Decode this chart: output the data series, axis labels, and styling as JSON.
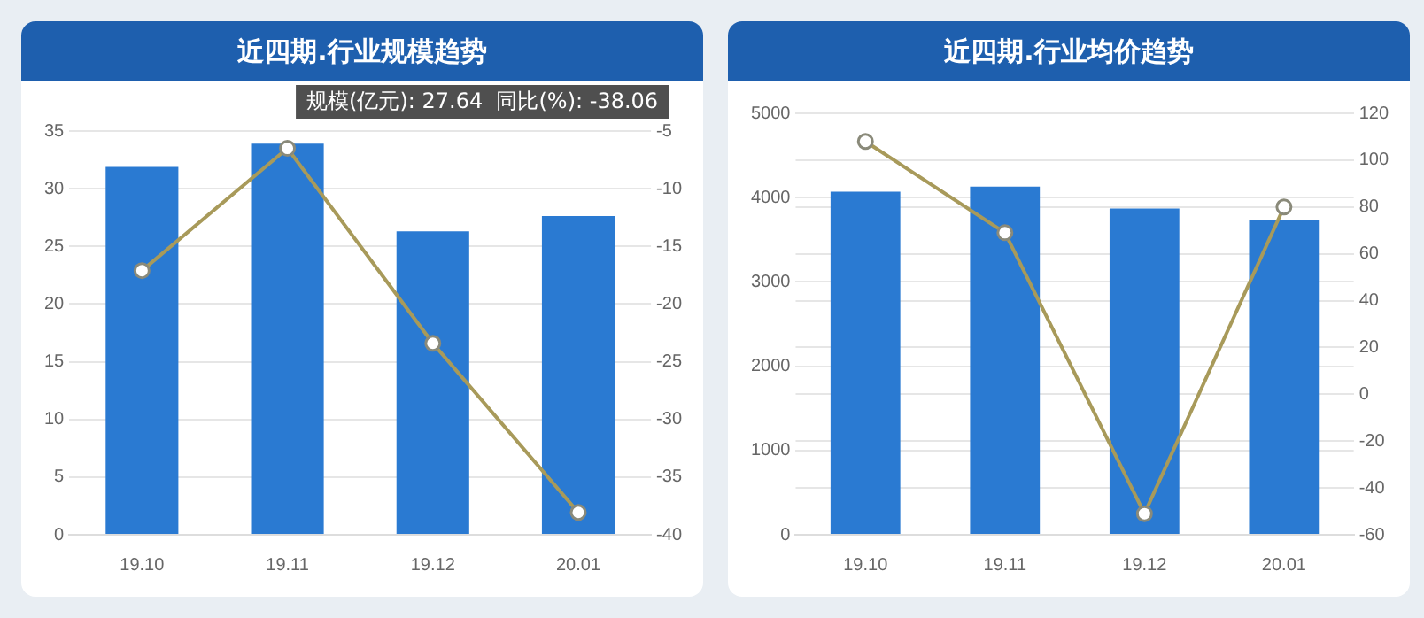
{
  "chart_data": [
    {
      "type": "bar",
      "title": "近四期.行业规模趋势",
      "categories": [
        "19.10",
        "19.11",
        "19.12",
        "20.01"
      ],
      "series": [
        {
          "color": "#2a7ad2",
          "values": [
            31.9,
            33.9,
            26.3,
            27.64
          ]
        },
        {
          "type": "line",
          "axis": "y2",
          "color": "#a89a5a",
          "values": [
            -17.1,
            -6.5,
            -23.4,
            -38.06
          ]
        }
      ],
      "ylim": [
        0,
        35
      ],
      "yticks": [
        0,
        5,
        10,
        15,
        20,
        25,
        30,
        35
      ],
      "y2lim": [
        -40,
        -5
      ],
      "y2ticks": [
        -40,
        -35,
        -30,
        -25,
        -20,
        -15,
        -10,
        -5
      ],
      "grid": true,
      "legend": false,
      "marker": "circle",
      "line_style": "solid",
      "annotations": [
        "规模(亿元): 27.64  同比(%): -38.06"
      ]
    },
    {
      "type": "bar",
      "title": "近四期.行业均价趋势",
      "categories": [
        "19.10",
        "19.11",
        "19.12",
        "20.01"
      ],
      "series": [
        {
          "color": "#2a7ad2",
          "values": [
            4070,
            4130,
            3870,
            3730
          ]
        },
        {
          "type": "line",
          "axis": "y2",
          "color": "#a89a5a",
          "values": [
            108,
            69,
            -51,
            80
          ]
        }
      ],
      "ylim": [
        0,
        5000
      ],
      "yticks": [
        0,
        1000,
        2000,
        3000,
        4000,
        5000
      ],
      "y2lim": [
        -60,
        120
      ],
      "y2ticks": [
        -60,
        -40,
        -20,
        0,
        20,
        40,
        60,
        80,
        100,
        120
      ],
      "grid": true,
      "legend": false,
      "marker": "circle",
      "line_style": "solid"
    }
  ]
}
